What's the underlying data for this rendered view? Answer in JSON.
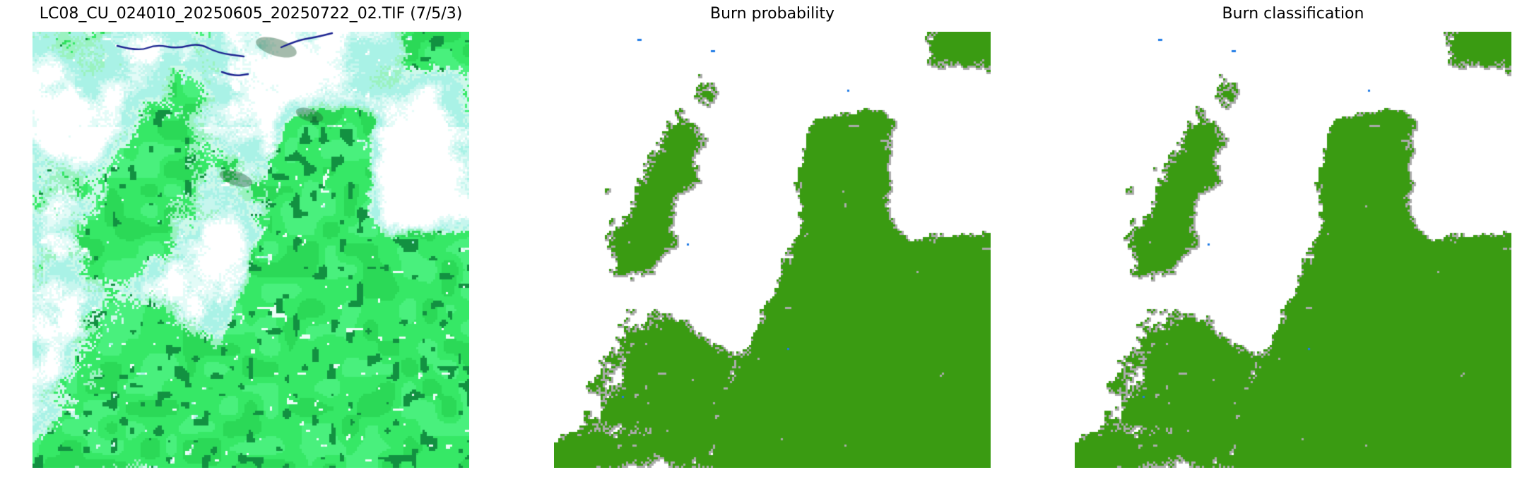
{
  "figure": {
    "background": "#ffffff",
    "title_color": "#000000"
  },
  "panels": [
    {
      "title": "LC08_CU_024010_20250605_20250722_02.TIF (7/5/3)",
      "type": "satellite",
      "threshold_offset": 0
    },
    {
      "title": "Burn probability",
      "type": "burn",
      "threshold_offset": 0
    },
    {
      "title": "Burn classification",
      "type": "burn",
      "threshold_offset": -0.006
    }
  ],
  "colors": {
    "background": "#ffffff",
    "burn_green": "#3a9b12",
    "burn_fringe_gray": "#ababab",
    "water_blue": "#1f7be6",
    "veg_bright": "#36e866",
    "veg_mid": "#2bd957",
    "veg_light": "#49f07d",
    "veg_dark": "#129141",
    "veg_speck_white": "#eafdf6",
    "fringe_green": "#9af2c0",
    "fringe_pale": "#cdf8ea",
    "cloud_cyan": "#a9f2e6",
    "cloud_light_cyan": "#c6f6ee",
    "cloud_pale": "#e3fbf7",
    "cloud_white": "#ffffff",
    "river_navy": "#1c2390",
    "cloud_shadow": "#1d5630"
  }
}
